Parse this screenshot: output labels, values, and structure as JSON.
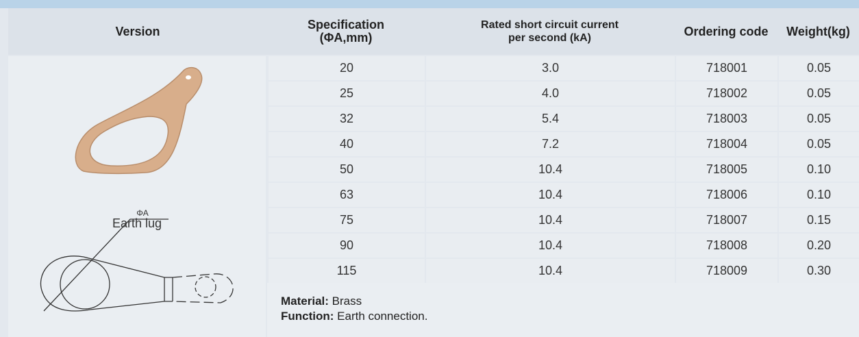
{
  "table": {
    "headers": [
      [
        "Version"
      ],
      [
        "Specification",
        "(ΦA,mm)"
      ],
      [
        "Rated short circuit current",
        "per second (kA)"
      ],
      [
        "Ordering code"
      ],
      [
        "Weight(kg)"
      ]
    ],
    "rows": [
      [
        "20",
        "3.0",
        "718001",
        "0.05"
      ],
      [
        "25",
        "4.0",
        "718002",
        "0.05"
      ],
      [
        "32",
        "5.4",
        "718003",
        "0.05"
      ],
      [
        "40",
        "7.2",
        "718004",
        "0.05"
      ],
      [
        "50",
        "10.4",
        "718005",
        "0.10"
      ],
      [
        "63",
        "10.4",
        "718006",
        "0.10"
      ],
      [
        "75",
        "10.4",
        "718007",
        "0.15"
      ],
      [
        "90",
        "10.4",
        "718008",
        "0.20"
      ],
      [
        "115",
        "10.4",
        "718009",
        "0.30"
      ]
    ]
  },
  "version": {
    "label": "Earth lug",
    "dimension_label": "ΦA"
  },
  "notes": [
    {
      "label": "Material:",
      "text": "Brass"
    },
    {
      "label": "Function:",
      "text": "Earth connection."
    }
  ]
}
